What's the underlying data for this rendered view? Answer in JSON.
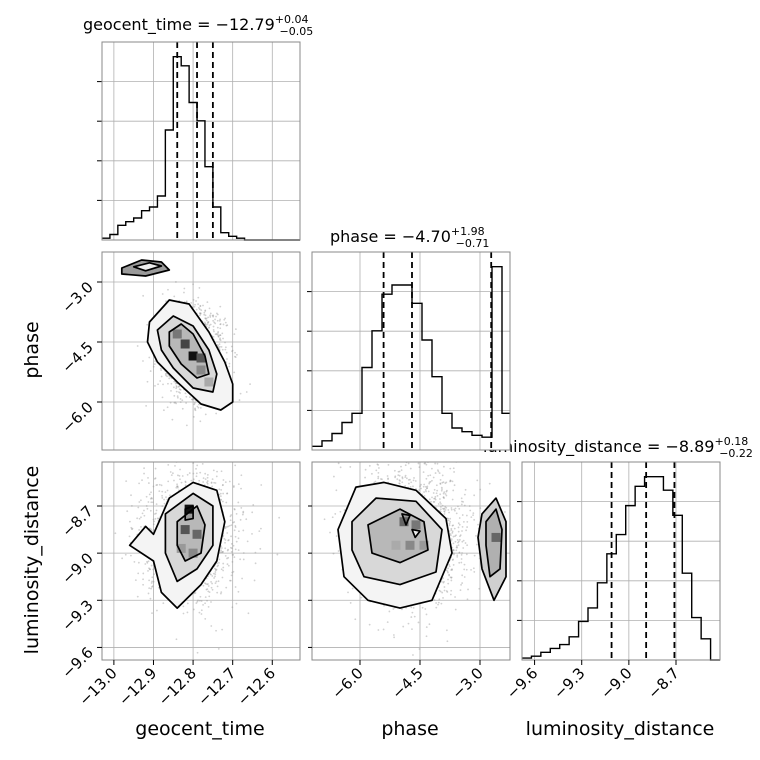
{
  "chart_data": {
    "type": "corner",
    "parameters": [
      "geocent_time",
      "phase",
      "luminosity_distance"
    ],
    "axes": {
      "geocent_time": {
        "label": "geocent_time",
        "range": [
          -13.03,
          -12.53
        ],
        "ticks": [
          -13.0,
          -12.9,
          -12.8,
          -12.7,
          -12.6
        ],
        "tick_labels": [
          "−13.0",
          "−12.9",
          "−12.8",
          "−12.7",
          "−12.6"
        ]
      },
      "phase": {
        "label": "phase",
        "range": [
          -7.2,
          -2.25
        ],
        "ticks": [
          -6.0,
          -4.5,
          -3.0
        ],
        "tick_labels": [
          "−6.0",
          "−4.5",
          "−3.0"
        ]
      },
      "luminosity_distance": {
        "label": "luminosity_distance",
        "range": [
          -9.68,
          -8.42
        ],
        "ticks": [
          -9.6,
          -9.3,
          -9.0,
          -8.7
        ],
        "tick_labels": [
          "−9.6",
          "−9.3",
          "−9.0",
          "−8.7"
        ]
      }
    },
    "marginals": [
      {
        "parameter": "geocent_time",
        "title": {
          "prefix": "geocent_time = ",
          "value": "−12.79",
          "plus": "+0.04",
          "minus": "−0.05"
        },
        "quantiles": [
          -12.84,
          -12.79,
          -12.75
        ],
        "bin_edges": [
          -13.03,
          -13.01,
          -12.99,
          -12.97,
          -12.95,
          -12.93,
          -12.91,
          -12.89,
          -12.87,
          -12.85,
          -12.83,
          -12.81,
          -12.79,
          -12.77,
          -12.75,
          -12.73,
          -12.71,
          -12.69,
          -12.67,
          -12.65,
          -12.63,
          -12.61,
          -12.59,
          -12.57,
          -12.55,
          -12.53
        ],
        "counts": [
          1,
          3,
          8,
          10,
          12,
          16,
          18,
          24,
          60,
          100,
          95,
          75,
          65,
          40,
          18,
          4,
          2,
          1,
          0,
          0,
          0,
          0,
          0,
          0,
          0
        ]
      },
      {
        "parameter": "phase",
        "title": {
          "prefix": "phase = ",
          "value": "−4.70",
          "plus": "+1.98",
          "minus": "−0.71"
        },
        "quantiles": [
          -5.41,
          -4.7,
          -2.72
        ],
        "bin_edges": [
          -7.2,
          -6.95,
          -6.7,
          -6.45,
          -6.2,
          -5.95,
          -5.7,
          -5.45,
          -5.2,
          -4.95,
          -4.7,
          -4.45,
          -4.2,
          -3.95,
          -3.7,
          -3.45,
          -3.2,
          -2.95,
          -2.7,
          -2.45,
          -2.25
        ],
        "counts": [
          2,
          5,
          9,
          15,
          20,
          45,
          65,
          85,
          90,
          90,
          80,
          60,
          40,
          20,
          12,
          10,
          8,
          7,
          100,
          20
        ]
      },
      {
        "parameter": "luminosity_distance",
        "title": {
          "prefix": "luminosity_distance = ",
          "value": "−8.89",
          "plus": "+0.18",
          "minus": "−0.22"
        },
        "quantiles": [
          -9.11,
          -8.89,
          -8.71
        ],
        "bin_edges": [
          -9.68,
          -9.62,
          -9.56,
          -9.5,
          -9.44,
          -9.38,
          -9.32,
          -9.26,
          -9.2,
          -9.14,
          -9.08,
          -9.02,
          -8.96,
          -8.9,
          -8.84,
          -8.78,
          -8.72,
          -8.66,
          -8.6,
          -8.54,
          -8.48,
          -8.42
        ],
        "counts": [
          1,
          2,
          4,
          6,
          8,
          12,
          20,
          27,
          40,
          55,
          65,
          80,
          90,
          95,
          95,
          88,
          75,
          45,
          22,
          11,
          0
        ]
      }
    ],
    "joints": [
      {
        "x": "geocent_time",
        "y": "phase",
        "contours": [
          [
            [
              -12.91,
              -4.0
            ],
            [
              -12.86,
              -3.45
            ],
            [
              -12.81,
              -3.55
            ],
            [
              -12.76,
              -4.25
            ],
            [
              -12.72,
              -5.0
            ],
            [
              -12.7,
              -5.55
            ],
            [
              -12.7,
              -6.0
            ],
            [
              -12.73,
              -6.2
            ],
            [
              -12.78,
              -6.05
            ],
            [
              -12.84,
              -5.5
            ],
            [
              -12.89,
              -5.0
            ],
            [
              -12.915,
              -4.5
            ]
          ],
          [
            [
              -12.89,
              -4.2
            ],
            [
              -12.85,
              -3.85
            ],
            [
              -12.8,
              -4.1
            ],
            [
              -12.76,
              -4.7
            ],
            [
              -12.74,
              -5.3
            ],
            [
              -12.75,
              -5.75
            ],
            [
              -12.8,
              -5.65
            ],
            [
              -12.85,
              -5.15
            ],
            [
              -12.88,
              -4.7
            ]
          ],
          [
            [
              -12.86,
              -4.25
            ],
            [
              -12.83,
              -4.05
            ],
            [
              -12.8,
              -4.3
            ],
            [
              -12.77,
              -4.85
            ],
            [
              -12.76,
              -5.3
            ],
            [
              -12.79,
              -5.4
            ],
            [
              -12.83,
              -5.05
            ],
            [
              -12.86,
              -4.6
            ]
          ],
          [
            [
              -12.98,
              -2.65
            ],
            [
              -12.93,
              -2.45
            ],
            [
              -12.88,
              -2.5
            ],
            [
              -12.86,
              -2.7
            ],
            [
              -12.92,
              -2.85
            ],
            [
              -12.98,
              -2.8
            ]
          ],
          [
            [
              -12.95,
              -2.62
            ],
            [
              -12.91,
              -2.52
            ],
            [
              -12.88,
              -2.6
            ],
            [
              -12.92,
              -2.72
            ]
          ]
        ],
        "peak_cells": [
          {
            "x": -12.8,
            "y": -4.85,
            "shade": "#111111"
          },
          {
            "x": -12.82,
            "y": -4.55,
            "shade": "#444444"
          },
          {
            "x": -12.78,
            "y": -4.9,
            "shade": "#555555"
          },
          {
            "x": -12.84,
            "y": -4.3,
            "shade": "#777777"
          },
          {
            "x": -12.78,
            "y": -5.2,
            "shade": "#888888"
          },
          {
            "x": -12.76,
            "y": -5.5,
            "shade": "#aaaaaa"
          }
        ],
        "samples_n": 1600,
        "samples_center": [
          -12.8,
          -4.8
        ],
        "samples_spread": [
          0.04,
          0.55
        ]
      },
      {
        "x": "geocent_time",
        "y": "luminosity_distance",
        "contours": [
          [
            [
              -12.9,
              -8.88
            ],
            [
              -12.86,
              -8.65
            ],
            [
              -12.8,
              -8.55
            ],
            [
              -12.74,
              -8.6
            ],
            [
              -12.72,
              -8.8
            ],
            [
              -12.74,
              -9.05
            ],
            [
              -12.78,
              -9.2
            ],
            [
              -12.84,
              -9.35
            ],
            [
              -12.88,
              -9.25
            ],
            [
              -12.9,
              -9.05
            ],
            [
              -12.96,
              -8.95
            ],
            [
              -12.92,
              -8.83
            ]
          ],
          [
            [
              -12.87,
              -8.75
            ],
            [
              -12.8,
              -8.62
            ],
            [
              -12.75,
              -8.7
            ],
            [
              -12.75,
              -8.95
            ],
            [
              -12.79,
              -9.1
            ],
            [
              -12.84,
              -9.18
            ],
            [
              -12.87,
              -9.0
            ]
          ],
          [
            [
              -12.84,
              -8.8
            ],
            [
              -12.79,
              -8.7
            ],
            [
              -12.77,
              -8.82
            ],
            [
              -12.78,
              -9.0
            ],
            [
              -12.82,
              -9.05
            ],
            [
              -12.84,
              -8.95
            ]
          ],
          [
            [
              -12.82,
              -8.72
            ],
            [
              -12.8,
              -8.7
            ],
            [
              -12.8,
              -8.78
            ],
            [
              -12.82,
              -8.79
            ]
          ]
        ],
        "peak_cells": [
          {
            "x": -12.81,
            "y": -8.72,
            "shade": "#111111"
          },
          {
            "x": -12.82,
            "y": -8.85,
            "shade": "#555555"
          },
          {
            "x": -12.79,
            "y": -8.88,
            "shade": "#666666"
          },
          {
            "x": -12.8,
            "y": -9.0,
            "shade": "#888888"
          },
          {
            "x": -12.83,
            "y": -8.97,
            "shade": "#999999"
          }
        ],
        "samples_n": 1600,
        "samples_center": [
          -12.81,
          -8.9
        ],
        "samples_spread": [
          0.06,
          0.2
        ]
      },
      {
        "x": "phase",
        "y": "luminosity_distance",
        "contours": [
          [
            [
              -6.55,
              -8.85
            ],
            [
              -6.1,
              -8.58
            ],
            [
              -5.4,
              -8.55
            ],
            [
              -4.6,
              -8.6
            ],
            [
              -3.85,
              -8.78
            ],
            [
              -3.7,
              -9.0
            ],
            [
              -4.2,
              -9.3
            ],
            [
              -5.0,
              -9.35
            ],
            [
              -5.8,
              -9.3
            ],
            [
              -6.4,
              -9.15
            ]
          ],
          [
            [
              -6.2,
              -8.8
            ],
            [
              -5.6,
              -8.65
            ],
            [
              -4.6,
              -8.67
            ],
            [
              -3.95,
              -8.85
            ],
            [
              -4.1,
              -9.12
            ],
            [
              -5.0,
              -9.2
            ],
            [
              -5.9,
              -9.15
            ],
            [
              -6.2,
              -8.98
            ]
          ],
          [
            [
              -5.8,
              -8.82
            ],
            [
              -5.0,
              -8.72
            ],
            [
              -4.4,
              -8.8
            ],
            [
              -4.3,
              -8.98
            ],
            [
              -5.0,
              -9.06
            ],
            [
              -5.7,
              -9.0
            ]
          ],
          [
            [
              -4.95,
              -8.75
            ],
            [
              -4.75,
              -8.76
            ],
            [
              -4.85,
              -8.82
            ]
          ],
          [
            [
              -4.7,
              -8.85
            ],
            [
              -4.5,
              -8.86
            ],
            [
              -4.62,
              -8.9
            ]
          ],
          [
            [
              -2.95,
              -8.75
            ],
            [
              -2.6,
              -8.65
            ],
            [
              -2.35,
              -8.8
            ],
            [
              -2.35,
              -9.15
            ],
            [
              -2.65,
              -9.3
            ],
            [
              -2.95,
              -9.1
            ],
            [
              -3.05,
              -8.9
            ]
          ],
          [
            [
              -2.85,
              -8.8
            ],
            [
              -2.6,
              -8.72
            ],
            [
              -2.45,
              -8.85
            ],
            [
              -2.5,
              -9.1
            ],
            [
              -2.75,
              -9.15
            ],
            [
              -2.85,
              -8.95
            ]
          ]
        ],
        "peak_cells": [
          {
            "x": -4.9,
            "y": -8.8,
            "shade": "#666666"
          },
          {
            "x": -4.6,
            "y": -8.82,
            "shade": "#777777"
          },
          {
            "x": -4.75,
            "y": -8.95,
            "shade": "#888888"
          },
          {
            "x": -5.1,
            "y": -8.95,
            "shade": "#aaaaaa"
          },
          {
            "x": -4.4,
            "y": -8.95,
            "shade": "#999999"
          },
          {
            "x": -2.6,
            "y": -8.9,
            "shade": "#666666"
          }
        ],
        "samples_n": 1800,
        "samples_center": [
          -4.7,
          -8.9
        ],
        "samples_spread": [
          0.7,
          0.22
        ]
      }
    ],
    "grid": true,
    "colors": {
      "line": "#000000",
      "grid": "#b0b0b0",
      "samples": "#9a9a9a"
    }
  }
}
